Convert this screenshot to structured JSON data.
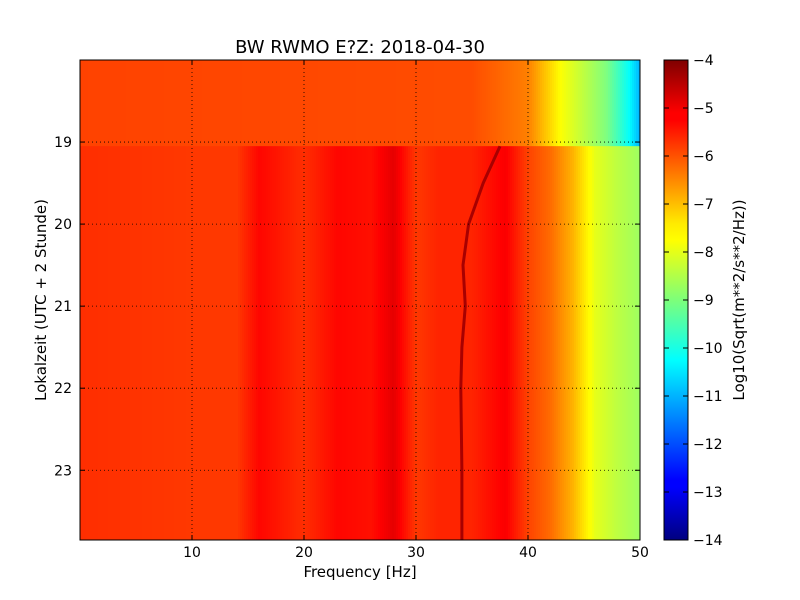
{
  "chart_data": {
    "type": "heatmap",
    "title": "BW RWMO E?Z: 2018-04-30",
    "xlabel": "Frequency [Hz]",
    "ylabel": "Lokalzeit (UTC + 2 Stunde)",
    "colorbar_label": "Log10(Sqrt(m**2/s**2/Hz))",
    "colormap": "jet",
    "xlim": [
      0,
      50
    ],
    "ylim": [
      18.0,
      23.85
    ],
    "y_inverted": true,
    "clim": [
      -14,
      -4
    ],
    "grid": true,
    "x_ticks": [
      10,
      20,
      30,
      40,
      50
    ],
    "x_tick_labels": [
      "10",
      "20",
      "30",
      "40",
      "50"
    ],
    "y_ticks": [
      19,
      20,
      21,
      22,
      23
    ],
    "y_tick_labels": [
      "19",
      "20",
      "21",
      "22",
      "23"
    ],
    "colorbar_ticks": [
      -4,
      -5,
      -6,
      -7,
      -8,
      -9,
      -10,
      -11,
      -12,
      -13,
      -14
    ],
    "colorbar_tick_labels": [
      "−4",
      "−5",
      "−6",
      "−7",
      "−8",
      "−9",
      "−10",
      "−11",
      "−12",
      "−13",
      "−14"
    ],
    "spectrum_before_19h": {
      "frequency_hz": [
        0,
        35,
        40,
        43,
        45,
        47,
        49,
        50
      ],
      "log10_amplitude": [
        -5.9,
        -6.0,
        -6.5,
        -7.8,
        -8.4,
        -9.0,
        -10.2,
        -11.0
      ]
    },
    "spectrum_after_19h": {
      "frequency_hz": [
        0,
        10,
        14,
        16,
        20,
        23,
        26,
        28,
        30,
        32,
        35,
        38,
        40,
        42,
        44,
        46,
        48,
        50
      ],
      "log10_amplitude": [
        -5.7,
        -5.8,
        -5.8,
        -5.3,
        -5.7,
        -5.3,
        -5.4,
        -5.0,
        -5.8,
        -5.6,
        -5.6,
        -5.2,
        -5.9,
        -6.3,
        -7.0,
        -8.0,
        -8.4,
        -8.7
      ]
    },
    "data_gap_hour": 19.05,
    "drifting_line": {
      "hour": [
        19.05,
        19.5,
        20.0,
        20.5,
        21.0,
        21.5,
        22.0,
        23.0,
        23.85
      ],
      "frequency_hz": [
        37.5,
        36.0,
        34.7,
        34.2,
        34.4,
        34.1,
        34.0,
        34.1,
        34.1
      ],
      "log10_amplitude": -4.4
    }
  }
}
